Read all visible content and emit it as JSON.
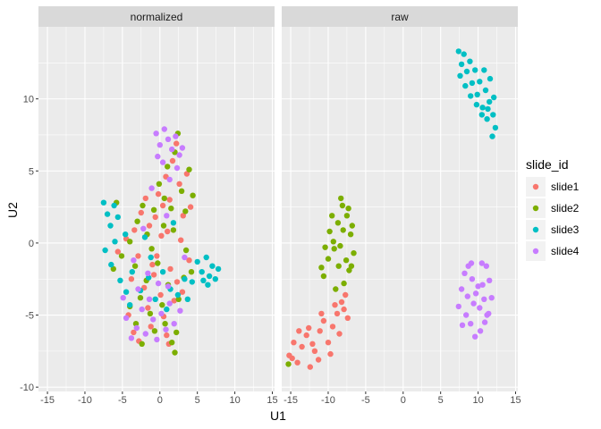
{
  "chart_data": {
    "type": "scatter",
    "facets": [
      "normalized",
      "raw"
    ],
    "xlabel": "U1",
    "ylabel": "U2",
    "xlim": [
      -16.2,
      15.3
    ],
    "ylim": [
      -10.3,
      15
    ],
    "xticks": [
      -15,
      -10,
      -5,
      0,
      5,
      10,
      15
    ],
    "yticks": [
      -10,
      -5,
      0,
      5,
      10
    ],
    "grid": true,
    "legend": {
      "title": "slide_id",
      "position": "right",
      "entries": [
        {
          "name": "slide1",
          "color": "#F8766D"
        },
        {
          "name": "slide2",
          "color": "#7CAE00"
        },
        {
          "name": "slide3",
          "color": "#00BFC4"
        },
        {
          "name": "slide4",
          "color": "#C77CFF"
        }
      ]
    },
    "series": [
      {
        "name": "slide1",
        "color": "#F8766D",
        "points": {
          "normalized": [
            [
              -4.2,
              -5.0
            ],
            [
              -3.5,
              -6.2
            ],
            [
              -2.8,
              -6.8
            ],
            [
              -2.1,
              -3.1
            ],
            [
              -1.6,
              -4.5
            ],
            [
              -1.2,
              -5.8
            ],
            [
              -0.8,
              -2.2
            ],
            [
              -0.4,
              -0.9
            ],
            [
              0.1,
              -3.6
            ],
            [
              0.5,
              -5.1
            ],
            [
              0.9,
              -6.4
            ],
            [
              1.4,
              -1.8
            ],
            [
              1.9,
              -4.0
            ],
            [
              2.3,
              -2.7
            ],
            [
              3.0,
              -3.4
            ],
            [
              -0.6,
              1.8
            ],
            [
              -0.2,
              3.4
            ],
            [
              0.4,
              2.6
            ],
            [
              0.8,
              4.6
            ],
            [
              1.3,
              3.0
            ],
            [
              1.7,
              5.7
            ],
            [
              2.2,
              6.9
            ],
            [
              2.6,
              4.1
            ],
            [
              3.1,
              1.9
            ],
            [
              3.6,
              4.8
            ],
            [
              -1.4,
              1.2
            ],
            [
              -1.9,
              3.1
            ],
            [
              -2.5,
              2.1
            ],
            [
              -3.4,
              0.9
            ],
            [
              -4.5,
              0.3
            ],
            [
              -5.6,
              -0.6
            ],
            [
              -2.9,
              -0.9
            ],
            [
              -1.0,
              -1.5
            ],
            [
              0.2,
              0.5
            ],
            [
              1.0,
              0.8
            ],
            [
              2.8,
              0.2
            ],
            [
              4.1,
              2.5
            ],
            [
              3.9,
              -1.2
            ],
            [
              1.2,
              -7.0
            ],
            [
              -3.8,
              -2.5
            ]
          ],
          "raw": [
            [
              -15.2,
              -7.8
            ],
            [
              -14.6,
              -6.9
            ],
            [
              -14.1,
              -8.3
            ],
            [
              -13.5,
              -7.2
            ],
            [
              -12.9,
              -6.4
            ],
            [
              -12.4,
              -8.6
            ],
            [
              -11.8,
              -7.5
            ],
            [
              -11.1,
              -6.1
            ],
            [
              -10.6,
              -5.4
            ],
            [
              -10.0,
              -6.9
            ],
            [
              -9.4,
              -5.8
            ],
            [
              -8.8,
              -4.9
            ],
            [
              -8.2,
              -4.1
            ],
            [
              -7.7,
              -3.6
            ],
            [
              -7.4,
              -5.2
            ],
            [
              -8.5,
              -6.3
            ],
            [
              -9.7,
              -7.7
            ],
            [
              -11.3,
              -8.1
            ],
            [
              -12.6,
              -5.9
            ],
            [
              -13.9,
              -6.1
            ],
            [
              -14.8,
              -8.0
            ],
            [
              -10.9,
              -4.9
            ],
            [
              -9.1,
              -4.3
            ],
            [
              -7.9,
              -4.6
            ],
            [
              -12.1,
              -7.0
            ]
          ]
        }
      },
      {
        "name": "slide2",
        "color": "#7CAE00",
        "points": {
          "normalized": [
            [
              -4.0,
              -4.4
            ],
            [
              -3.2,
              -5.6
            ],
            [
              -2.4,
              -7.0
            ],
            [
              -1.8,
              -2.6
            ],
            [
              -1.3,
              -4.9
            ],
            [
              -0.7,
              -6.1
            ],
            [
              -0.3,
              -1.4
            ],
            [
              0.3,
              -4.3
            ],
            [
              0.7,
              -5.6
            ],
            [
              1.1,
              -2.9
            ],
            [
              1.6,
              -6.9
            ],
            [
              2.0,
              -7.6
            ],
            [
              2.5,
              -3.9
            ],
            [
              3.2,
              -2.4
            ],
            [
              -0.8,
              2.3
            ],
            [
              -0.1,
              4.1
            ],
            [
              0.6,
              3.1
            ],
            [
              1.0,
              5.3
            ],
            [
              1.5,
              2.4
            ],
            [
              2.0,
              6.3
            ],
            [
              2.4,
              7.6
            ],
            [
              2.9,
              3.6
            ],
            [
              3.4,
              2.2
            ],
            [
              3.9,
              5.1
            ],
            [
              -1.7,
              0.6
            ],
            [
              -2.3,
              2.6
            ],
            [
              -3.0,
              1.5
            ],
            [
              -4.0,
              0.1
            ],
            [
              -5.1,
              -0.9
            ],
            [
              -6.2,
              -1.8
            ],
            [
              -3.3,
              -1.6
            ],
            [
              -1.1,
              -0.4
            ],
            [
              0.5,
              1.2
            ],
            [
              1.8,
              0.9
            ],
            [
              3.5,
              -0.5
            ],
            [
              4.4,
              3.3
            ],
            [
              4.2,
              -2.0
            ],
            [
              2.2,
              -6.2
            ],
            [
              -2.6,
              -3.8
            ],
            [
              -5.8,
              2.8
            ]
          ],
          "raw": [
            [
              -10.6,
              -2.3
            ],
            [
              -10.0,
              -1.1
            ],
            [
              -9.3,
              0.1
            ],
            [
              -8.7,
              1.4
            ],
            [
              -8.1,
              2.6
            ],
            [
              -7.5,
              1.9
            ],
            [
              -7.0,
              0.6
            ],
            [
              -6.6,
              -0.7
            ],
            [
              -7.2,
              -1.9
            ],
            [
              -7.9,
              -2.8
            ],
            [
              -8.6,
              -1.6
            ],
            [
              -9.2,
              -0.4
            ],
            [
              -9.8,
              0.8
            ],
            [
              -10.4,
              -0.3
            ],
            [
              -8.4,
              -0.2
            ],
            [
              -7.6,
              -1.2
            ],
            [
              -9.5,
              1.9
            ],
            [
              -8.3,
              3.1
            ],
            [
              -7.3,
              2.4
            ],
            [
              -6.9,
              -1.6
            ],
            [
              -10.9,
              -1.7
            ],
            [
              -9.0,
              -3.2
            ],
            [
              -8.0,
              0.9
            ],
            [
              -6.8,
              1.2
            ],
            [
              -15.3,
              -8.4
            ]
          ]
        }
      },
      {
        "name": "slide3",
        "color": "#00BFC4",
        "points": {
          "normalized": [
            [
              -7.5,
              2.8
            ],
            [
              -7.0,
              2.0
            ],
            [
              -6.6,
              1.2
            ],
            [
              -6.1,
              2.6
            ],
            [
              -5.6,
              1.8
            ],
            [
              -7.3,
              -0.5
            ],
            [
              -6.5,
              -1.5
            ],
            [
              -5.3,
              -2.6
            ],
            [
              -4.5,
              -3.4
            ],
            [
              -3.7,
              -2.0
            ],
            [
              -2.6,
              -3.3
            ],
            [
              -1.5,
              -2.4
            ],
            [
              -0.6,
              -3.9
            ],
            [
              0.4,
              -2.0
            ],
            [
              1.4,
              -3.2
            ],
            [
              2.4,
              -3.6
            ],
            [
              3.3,
              -2.5
            ],
            [
              4.3,
              -2.7
            ],
            [
              5.0,
              -1.3
            ],
            [
              5.6,
              -2.0
            ],
            [
              6.2,
              -1.0
            ],
            [
              6.6,
              -2.3
            ],
            [
              7.0,
              -1.6
            ],
            [
              7.4,
              -2.5
            ],
            [
              7.8,
              -1.8
            ],
            [
              6.4,
              -2.9
            ],
            [
              5.8,
              -2.6
            ],
            [
              -4.0,
              -4.3
            ],
            [
              -1.2,
              -1.0
            ],
            [
              0.9,
              -4.6
            ],
            [
              3.7,
              -3.9
            ],
            [
              -6.0,
              0.1
            ],
            [
              -4.6,
              0.6
            ],
            [
              -2.0,
              0.4
            ],
            [
              1.8,
              1.4
            ]
          ],
          "raw": [
            [
              7.4,
              13.3
            ],
            [
              8.1,
              13.1
            ],
            [
              8.9,
              12.6
            ],
            [
              9.6,
              12.0
            ],
            [
              10.2,
              11.2
            ],
            [
              11.0,
              10.6
            ],
            [
              11.5,
              9.8
            ],
            [
              12.0,
              8.9
            ],
            [
              12.3,
              8.0
            ],
            [
              11.9,
              7.4
            ],
            [
              11.2,
              8.6
            ],
            [
              10.6,
              9.4
            ],
            [
              9.9,
              10.3
            ],
            [
              9.2,
              11.1
            ],
            [
              8.5,
              11.9
            ],
            [
              7.8,
              12.4
            ],
            [
              7.6,
              11.6
            ],
            [
              8.3,
              10.9
            ],
            [
              9.0,
              10.2
            ],
            [
              9.8,
              9.6
            ],
            [
              10.5,
              8.9
            ],
            [
              11.3,
              9.3
            ],
            [
              12.1,
              10.1
            ],
            [
              11.6,
              11.4
            ],
            [
              10.8,
              12.0
            ]
          ]
        }
      },
      {
        "name": "slide4",
        "color": "#C77CFF",
        "points": {
          "normalized": [
            [
              -4.5,
              -5.2
            ],
            [
              -3.8,
              -6.6
            ],
            [
              -3.1,
              -5.9
            ],
            [
              -2.4,
              -4.6
            ],
            [
              -1.9,
              -6.3
            ],
            [
              -1.4,
              -3.9
            ],
            [
              -0.9,
              -5.3
            ],
            [
              -0.4,
              -6.7
            ],
            [
              0.2,
              -4.9
            ],
            [
              0.8,
              -6.0
            ],
            [
              1.3,
              -4.2
            ],
            [
              1.9,
              -5.6
            ],
            [
              -2.9,
              -3.2
            ],
            [
              -1.6,
              -2.1
            ],
            [
              -0.2,
              -2.8
            ],
            [
              1.1,
              -3.0
            ],
            [
              2.7,
              -4.7
            ],
            [
              -0.5,
              7.6
            ],
            [
              0.0,
              6.8
            ],
            [
              0.6,
              7.9
            ],
            [
              1.1,
              7.2
            ],
            [
              1.6,
              6.5
            ],
            [
              2.1,
              7.4
            ],
            [
              2.6,
              6.1
            ],
            [
              -0.3,
              6.0
            ],
            [
              0.4,
              5.6
            ],
            [
              1.3,
              4.4
            ],
            [
              -1.1,
              3.8
            ],
            [
              2.3,
              5.2
            ],
            [
              3.0,
              6.6
            ],
            [
              -3.5,
              -1.2
            ],
            [
              -2.2,
              1.0
            ],
            [
              0.9,
              1.9
            ],
            [
              3.3,
              -1.0
            ],
            [
              -4.9,
              -3.8
            ]
          ],
          "raw": [
            [
              7.4,
              -4.4
            ],
            [
              7.8,
              -3.2
            ],
            [
              8.2,
              -2.1
            ],
            [
              8.7,
              -1.6
            ],
            [
              9.2,
              -2.5
            ],
            [
              9.7,
              -3.5
            ],
            [
              10.2,
              -4.5
            ],
            [
              10.6,
              -2.9
            ],
            [
              11.1,
              -1.6
            ],
            [
              11.5,
              -2.6
            ],
            [
              11.8,
              -3.8
            ],
            [
              11.4,
              -4.9
            ],
            [
              10.9,
              -5.5
            ],
            [
              10.3,
              -6.1
            ],
            [
              9.6,
              -6.5
            ],
            [
              9.0,
              -5.6
            ],
            [
              8.4,
              -5.0
            ],
            [
              7.9,
              -5.7
            ],
            [
              8.6,
              -3.7
            ],
            [
              9.4,
              -4.2
            ],
            [
              10.0,
              -3.0
            ],
            [
              10.8,
              -3.9
            ],
            [
              9.1,
              -1.4
            ],
            [
              10.5,
              -1.4
            ],
            [
              11.2,
              -5.0
            ]
          ]
        }
      }
    ]
  }
}
